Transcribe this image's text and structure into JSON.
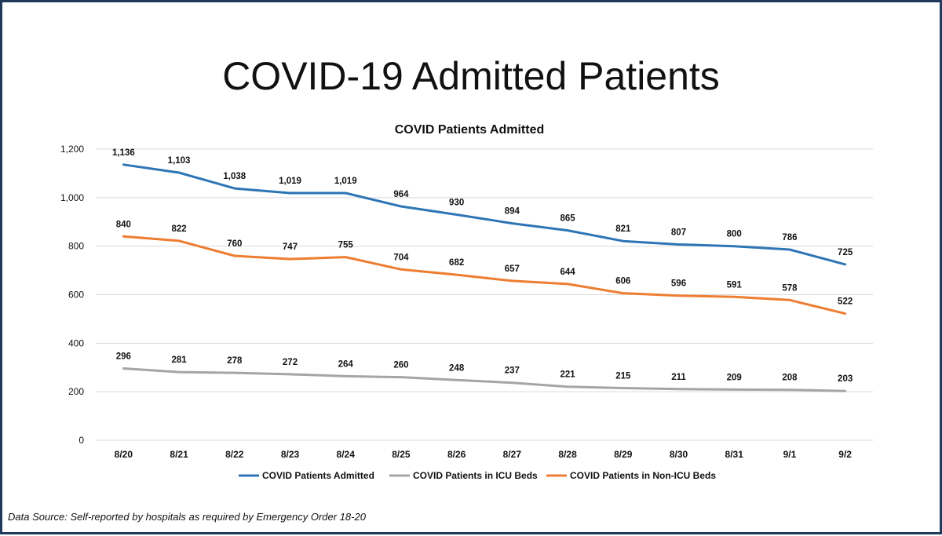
{
  "slide": {
    "title": "COVID-19 Admitted Patients",
    "footer": "Data Source: Self-reported by hospitals as required by Emergency Order 18-20"
  },
  "chart_data": {
    "type": "line",
    "title": "COVID Patients Admitted",
    "xlabel": "",
    "ylabel": "",
    "categories": [
      "8/20",
      "8/21",
      "8/22",
      "8/23",
      "8/24",
      "8/25",
      "8/26",
      "8/27",
      "8/28",
      "8/29",
      "8/30",
      "8/31",
      "9/1",
      "9/2"
    ],
    "ylim": [
      0,
      1200
    ],
    "yticks": [
      0,
      200,
      400,
      600,
      800,
      1000,
      1200
    ],
    "ytick_labels": [
      "0",
      "200",
      "400",
      "600",
      "800",
      "1,000",
      "1,200"
    ],
    "grid": true,
    "legend_position": "bottom",
    "series": [
      {
        "name": "COVID Patients Admitted",
        "color": "#2e75b6",
        "values": [
          1136,
          1103,
          1038,
          1019,
          1019,
          964,
          930,
          894,
          865,
          821,
          807,
          800,
          786,
          725
        ],
        "labels": [
          "1,136",
          "1,103",
          "1,038",
          "1,019",
          "1,019",
          "964",
          "930",
          "894",
          "865",
          "821",
          "807",
          "800",
          "786",
          "725"
        ]
      },
      {
        "name": "COVID Patients in ICU Beds",
        "color": "#a5a5a5",
        "values": [
          296,
          281,
          278,
          272,
          264,
          260,
          248,
          237,
          221,
          215,
          211,
          209,
          208,
          203
        ],
        "labels": [
          "296",
          "281",
          "278",
          "272",
          "264",
          "260",
          "248",
          "237",
          "221",
          "215",
          "211",
          "209",
          "208",
          "203"
        ]
      },
      {
        "name": "COVID Patients in Non-ICU Beds",
        "color": "#ed7d31",
        "values": [
          840,
          822,
          760,
          747,
          755,
          704,
          682,
          657,
          644,
          606,
          596,
          591,
          578,
          522
        ],
        "labels": [
          "840",
          "822",
          "760",
          "747",
          "755",
          "704",
          "682",
          "657",
          "644",
          "606",
          "596",
          "591",
          "578",
          "522"
        ]
      }
    ]
  }
}
